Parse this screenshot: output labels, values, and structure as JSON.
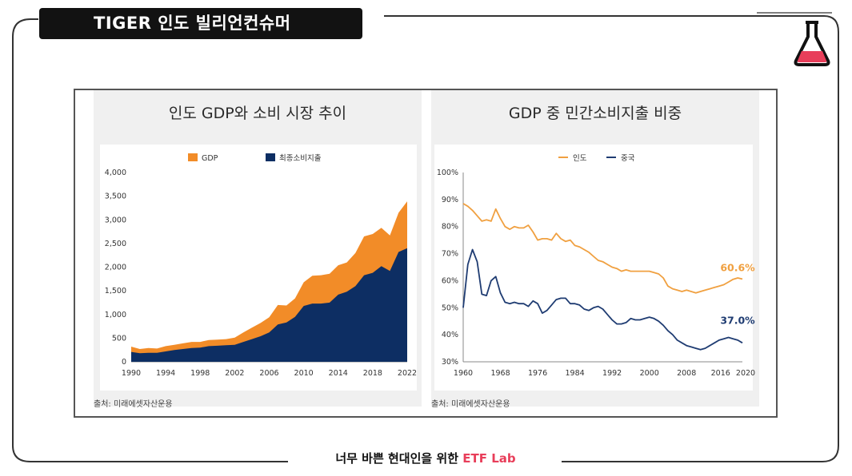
{
  "header": {
    "title": "TIGER 인도 빌리언컨슈머"
  },
  "footer": {
    "tagline": "너무 바쁜 현대인을 위한",
    "brand": "ETF Lab"
  },
  "colors": {
    "gdp": "#F28C28",
    "consumption": "#0D2E63",
    "india": "#F0A040",
    "china": "#1F3C72",
    "accent": "#E83E5A"
  },
  "chart_data": [
    {
      "type": "area",
      "title": "인도 GDP와 소비 시장 추이",
      "source": "출처: 미래에셋자산운용",
      "legend": [
        "GDP",
        "최종소비지출"
      ],
      "ylim": [
        0,
        4000
      ],
      "yticks": [
        "0",
        "500",
        "1,000",
        "1,500",
        "2,000",
        "2,500",
        "3,000",
        "3,500",
        "4,000"
      ],
      "xticks": [
        "1990",
        "1994",
        "1998",
        "2002",
        "2006",
        "2010",
        "2014",
        "2018",
        "2022"
      ],
      "x": [
        1990,
        1991,
        1992,
        1993,
        1994,
        1995,
        1996,
        1997,
        1998,
        1999,
        2000,
        2001,
        2002,
        2003,
        2004,
        2005,
        2006,
        2007,
        2008,
        2009,
        2010,
        2011,
        2012,
        2013,
        2014,
        2015,
        2016,
        2017,
        2018,
        2019,
        2020,
        2021,
        2022
      ],
      "series": [
        {
          "name": "GDP",
          "values": [
            320,
            270,
            290,
            280,
            330,
            360,
            390,
            420,
            420,
            460,
            470,
            480,
            510,
            620,
            720,
            820,
            940,
            1200,
            1190,
            1340,
            1680,
            1820,
            1830,
            1860,
            2040,
            2100,
            2300,
            2650,
            2700,
            2830,
            2670,
            3150,
            3390
          ]
        },
        {
          "name": "최종소비지출",
          "values": [
            210,
            180,
            190,
            190,
            220,
            250,
            270,
            290,
            300,
            330,
            340,
            350,
            360,
            420,
            480,
            540,
            620,
            790,
            830,
            950,
            1180,
            1230,
            1230,
            1250,
            1420,
            1480,
            1600,
            1830,
            1880,
            2020,
            1920,
            2320,
            2400
          ]
        }
      ]
    },
    {
      "type": "line",
      "title": "GDP 중 민간소비지출 비중",
      "source": "출처: 미래에셋자산운용",
      "legend": [
        "인도",
        "중국"
      ],
      "ylim": [
        30,
        100
      ],
      "yticks": [
        "30%",
        "40%",
        "50%",
        "60%",
        "70%",
        "80%",
        "90%",
        "100%"
      ],
      "xticks": [
        "1960",
        "1968",
        "1976",
        "1984",
        "1992",
        "2000",
        "2008",
        "2016",
        "2020"
      ],
      "x": [
        1960,
        1961,
        1962,
        1963,
        1964,
        1965,
        1966,
        1967,
        1968,
        1969,
        1970,
        1971,
        1972,
        1973,
        1974,
        1975,
        1976,
        1977,
        1978,
        1979,
        1980,
        1981,
        1982,
        1983,
        1984,
        1985,
        1986,
        1987,
        1988,
        1989,
        1990,
        1991,
        1992,
        1993,
        1994,
        1995,
        1996,
        1997,
        1998,
        1999,
        2000,
        2001,
        2002,
        2003,
        2004,
        2005,
        2006,
        2007,
        2008,
        2009,
        2010,
        2011,
        2012,
        2013,
        2014,
        2015,
        2016,
        2017,
        2018,
        2019,
        2020
      ],
      "series": [
        {
          "name": "인도",
          "values": [
            88.5,
            87.5,
            86,
            84,
            82,
            82.5,
            82,
            86.5,
            83,
            80,
            79,
            80,
            79.5,
            79.5,
            80.5,
            78,
            75,
            75.5,
            75.5,
            75,
            77.5,
            75.5,
            74.5,
            75,
            73,
            72.5,
            71.5,
            70.5,
            69,
            67.5,
            67,
            66,
            65,
            64.5,
            63.5,
            64,
            63.5,
            63.5,
            63.5,
            63.5,
            63.5,
            63,
            62.5,
            61,
            58,
            57,
            56.5,
            56,
            56.5,
            56,
            55.5,
            56,
            56.5,
            57,
            57.5,
            58,
            58.5,
            59.5,
            60.5,
            61,
            60.6
          ]
        },
        {
          "name": "중국",
          "values": [
            50,
            66,
            71.5,
            67,
            55,
            54.5,
            60,
            61.5,
            55.5,
            52,
            51.5,
            52,
            51.5,
            51.5,
            50.5,
            52.5,
            51.5,
            48,
            49,
            51,
            53,
            53.5,
            53.5,
            51.5,
            51.5,
            51,
            49.5,
            49,
            50,
            50.5,
            49.5,
            47.5,
            45.5,
            44,
            44,
            44.5,
            46,
            45.5,
            45.5,
            46,
            46.5,
            46,
            45,
            43.5,
            41.5,
            40,
            38,
            37,
            36,
            35.5,
            35,
            34.5,
            35,
            36,
            37,
            38,
            38.5,
            39,
            38.5,
            38,
            37
          ]
        }
      ],
      "annotations": [
        {
          "series": "인도",
          "label": "60.6%"
        },
        {
          "series": "중국",
          "label": "37.0%"
        }
      ]
    }
  ]
}
